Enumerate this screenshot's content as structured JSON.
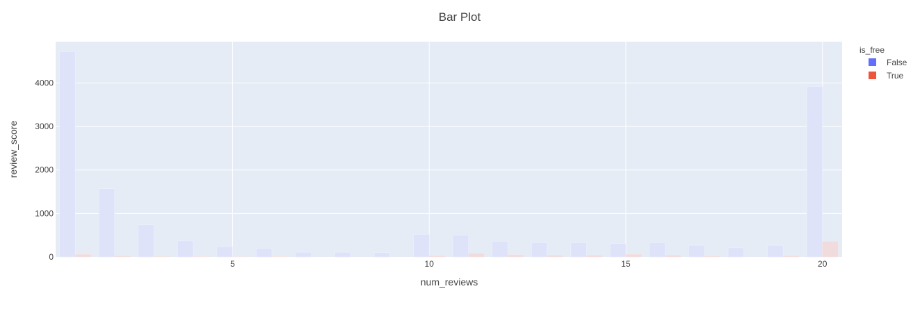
{
  "chart_data": {
    "type": "bar",
    "title": "Bar Plot",
    "xlabel": "num_reviews",
    "ylabel": "review_score",
    "xlim": [
      0.5,
      20.5
    ],
    "ylim": [
      0,
      4950
    ],
    "x_ticks": [
      5,
      10,
      15,
      20
    ],
    "y_ticks": [
      0,
      1000,
      2000,
      3000,
      4000
    ],
    "grid": true,
    "legend": {
      "title": "is_free",
      "placement": "top-right"
    },
    "x": [
      1,
      2,
      3,
      4,
      5,
      6,
      7,
      8,
      9,
      10,
      11,
      12,
      13,
      14,
      15,
      16,
      17,
      18,
      19,
      20
    ],
    "series": [
      {
        "name": "False",
        "color": "#636efa",
        "values": [
          4720,
          1570,
          740,
          370,
          240,
          200,
          110,
          110,
          100,
          520,
          500,
          360,
          330,
          330,
          310,
          330,
          270,
          210,
          270,
          3920
        ]
      },
      {
        "name": "True",
        "color": "#ef553b",
        "values": [
          60,
          25,
          15,
          10,
          5,
          10,
          0,
          0,
          0,
          30,
          80,
          50,
          40,
          40,
          60,
          40,
          20,
          0,
          30,
          360
        ]
      }
    ]
  }
}
